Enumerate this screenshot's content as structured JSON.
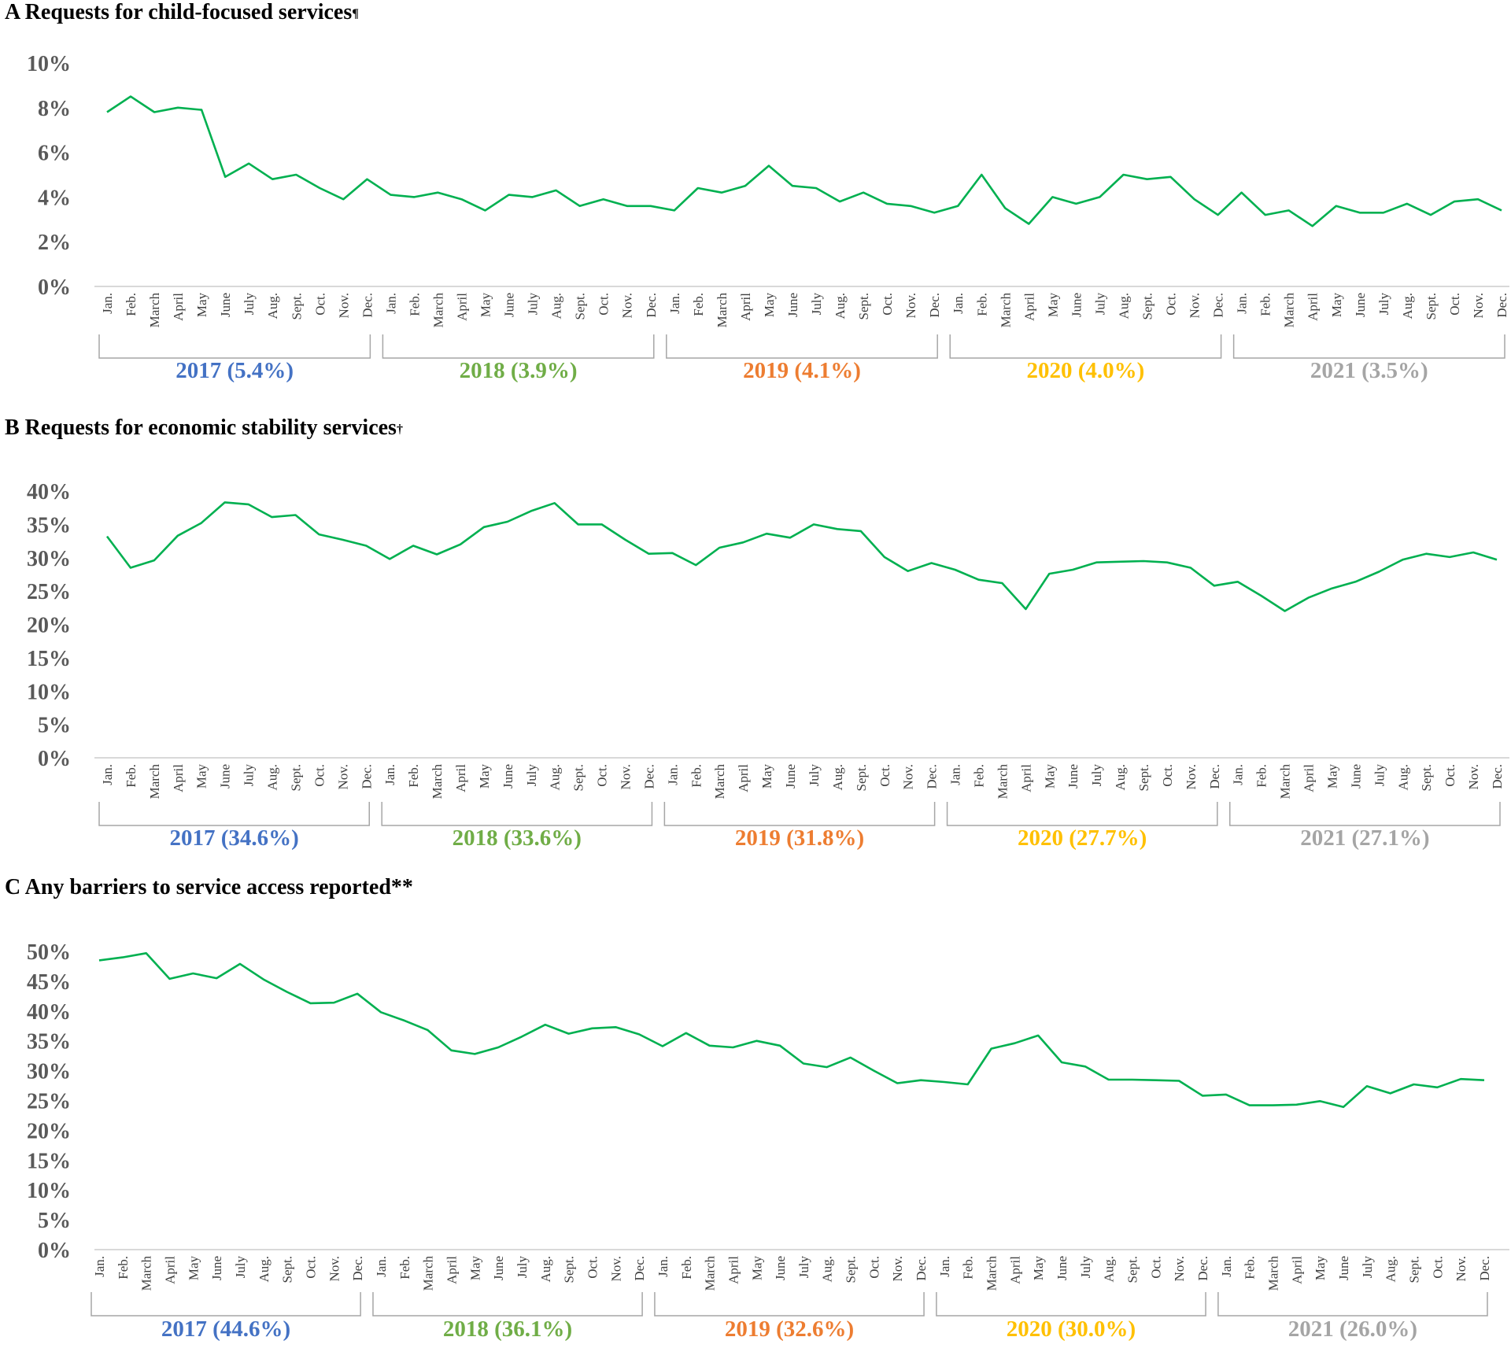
{
  "chart_data": [
    {
      "type": "line",
      "panel_title": "A Requests for child-focused services",
      "title_mark": "¶",
      "yticks": [
        "0%",
        "2%",
        "4%",
        "6%",
        "8%",
        "10%"
      ],
      "ylim": [
        0,
        10
      ],
      "months": [
        "Jan.",
        "Feb.",
        "March",
        "April",
        "May",
        "June",
        "July",
        "Aug.",
        "Sept.",
        "Oct.",
        "Nov.",
        "Dec."
      ],
      "years": [
        {
          "label": "2017 (5.4%)",
          "color": "#4472C4"
        },
        {
          "label": "2018 (3.9%)",
          "color": "#70AD47"
        },
        {
          "label": "2019 (4.1%)",
          "color": "#ED7D31"
        },
        {
          "label": "2020 (4.0%)",
          "color": "#FFC000"
        },
        {
          "label": "2021 (3.5%)",
          "color": "#A5A5A5"
        }
      ],
      "line_color": "#00B050",
      "values": [
        7.8,
        8.5,
        7.8,
        8.0,
        7.9,
        4.9,
        5.5,
        4.8,
        5.0,
        4.4,
        3.9,
        4.8,
        4.1,
        4.0,
        4.2,
        3.9,
        3.4,
        4.1,
        4.0,
        4.3,
        3.6,
        3.9,
        3.6,
        3.6,
        3.4,
        4.4,
        4.2,
        4.5,
        5.4,
        4.5,
        4.4,
        3.8,
        4.2,
        3.7,
        3.6,
        3.3,
        3.6,
        5.0,
        3.5,
        2.8,
        4.0,
        3.7,
        4.0,
        5.0,
        4.8,
        4.9,
        3.9,
        3.2,
        4.2,
        3.2,
        3.4,
        2.7,
        3.6,
        3.3,
        3.3,
        3.7,
        3.2,
        3.8,
        3.9,
        3.4
      ]
    },
    {
      "type": "line",
      "panel_title": "B Requests for economic stability services",
      "title_mark": "†",
      "yticks": [
        "0%",
        "5%",
        "10%",
        "15%",
        "20%",
        "25%",
        "30%",
        "35%",
        "40%"
      ],
      "ylim": [
        0,
        40
      ],
      "months": [
        "Jan.",
        "Feb.",
        "March",
        "April",
        "May",
        "June",
        "July",
        "Aug.",
        "Sept.",
        "Oct.",
        "Nov.",
        "Dec."
      ],
      "years": [
        {
          "label": "2017 (34.6%)",
          "color": "#4472C4"
        },
        {
          "label": "2018 (33.6%)",
          "color": "#70AD47"
        },
        {
          "label": "2019 (31.8%)",
          "color": "#ED7D31"
        },
        {
          "label": "2020 (27.7%)",
          "color": "#FFC000"
        },
        {
          "label": "2021 (27.1%)",
          "color": "#A5A5A5"
        }
      ],
      "line_color": "#00B050",
      "values": [
        33.2,
        28.5,
        29.6,
        33.3,
        35.2,
        38.3,
        38.0,
        36.1,
        36.4,
        33.5,
        32.7,
        31.8,
        29.8,
        31.8,
        30.5,
        32.0,
        34.6,
        35.4,
        37.0,
        38.2,
        35.0,
        35.0,
        32.7,
        30.6,
        30.7,
        28.9,
        31.5,
        32.3,
        33.6,
        33.0,
        35.0,
        34.3,
        34.0,
        30.1,
        28.0,
        29.2,
        28.2,
        26.7,
        26.2,
        22.3,
        27.6,
        28.2,
        29.3,
        29.4,
        29.5,
        29.3,
        28.5,
        25.8,
        26.4,
        24.3,
        22.0,
        24.0,
        25.4,
        26.4,
        27.9,
        29.7,
        30.6,
        30.1,
        30.8,
        29.7
      ]
    },
    {
      "type": "line",
      "panel_title": "C Any barriers to service access reported**",
      "title_mark": "",
      "yticks": [
        "0%",
        "5%",
        "10%",
        "15%",
        "20%",
        "25%",
        "30%",
        "35%",
        "40%",
        "45%",
        "50%"
      ],
      "ylim": [
        0,
        50
      ],
      "months": [
        "Jan.",
        "Feb.",
        "March",
        "April",
        "May",
        "June",
        "July",
        "Aug.",
        "Sept.",
        "Oct.",
        "Nov.",
        "Dec."
      ],
      "years": [
        {
          "label": "2017 (44.6%)",
          "color": "#4472C4"
        },
        {
          "label": "2018 (36.1%)",
          "color": "#70AD47"
        },
        {
          "label": "2019 (32.6%)",
          "color": "#ED7D31"
        },
        {
          "label": "2020 (30.0%)",
          "color": "#FFC000"
        },
        {
          "label": "2021 (26.0%)",
          "color": "#A5A5A5"
        }
      ],
      "line_color": "#00B050",
      "values": [
        48.5,
        49.0,
        49.7,
        45.4,
        46.3,
        45.5,
        47.9,
        45.3,
        43.2,
        41.3,
        41.4,
        42.9,
        39.8,
        38.4,
        36.8,
        33.4,
        32.8,
        33.9,
        35.7,
        37.7,
        36.2,
        37.1,
        37.3,
        36.1,
        34.1,
        36.3,
        34.2,
        33.9,
        35.0,
        34.2,
        31.2,
        30.6,
        32.2,
        30.0,
        27.9,
        28.4,
        28.1,
        27.7,
        33.7,
        34.6,
        35.9,
        31.4,
        30.7,
        28.5,
        28.5,
        28.4,
        28.3,
        25.8,
        26.0,
        24.2,
        24.2,
        24.3,
        24.9,
        23.9,
        27.4,
        26.2,
        27.7,
        27.2,
        28.6,
        28.4
      ]
    }
  ]
}
